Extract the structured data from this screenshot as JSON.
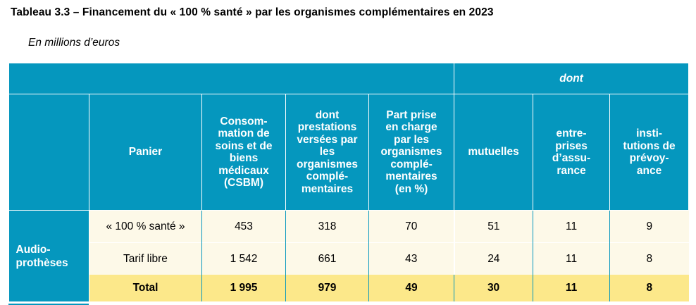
{
  "title": "Tableau 3.3 – Financement du « 100 % santé » par les organismes complémentaires en 2023",
  "subtitle": "En millions d’euros",
  "table": {
    "dont_label": "dont",
    "headers": {
      "panier": "Panier",
      "csbm": "Consom-\nmation de\nsoins et de\nbiens\nmédicaux\n(CSBM)",
      "prestations": "dont\nprestations\nversées par\nles\norganismes\ncomplé-\nmentaires",
      "part": "Part prise\nen charge\npar les\norganismes\ncomplé-\nmentaires\n(en %)",
      "mutuelles": "mutuelles",
      "entreprises": "entre-\nprises\nd’assu-\nrance",
      "institutions": "insti-\ntutions de\nprévoy-\nance"
    },
    "group_label": "Audio-\nprothèses",
    "rows": [
      {
        "panier": "« 100 % santé »",
        "csbm": "453",
        "prestations": "318",
        "part": "70",
        "mutuelles": "51",
        "entreprises": "11",
        "institutions": "9"
      },
      {
        "panier": "Tarif libre",
        "csbm": "1 542",
        "prestations": "661",
        "part": "43",
        "mutuelles": "24",
        "entreprises": "11",
        "institutions": "8"
      },
      {
        "panier": "Total",
        "csbm": "1 995",
        "prestations": "979",
        "part": "49",
        "mutuelles": "30",
        "entreprises": "11",
        "institutions": "8"
      }
    ]
  }
}
